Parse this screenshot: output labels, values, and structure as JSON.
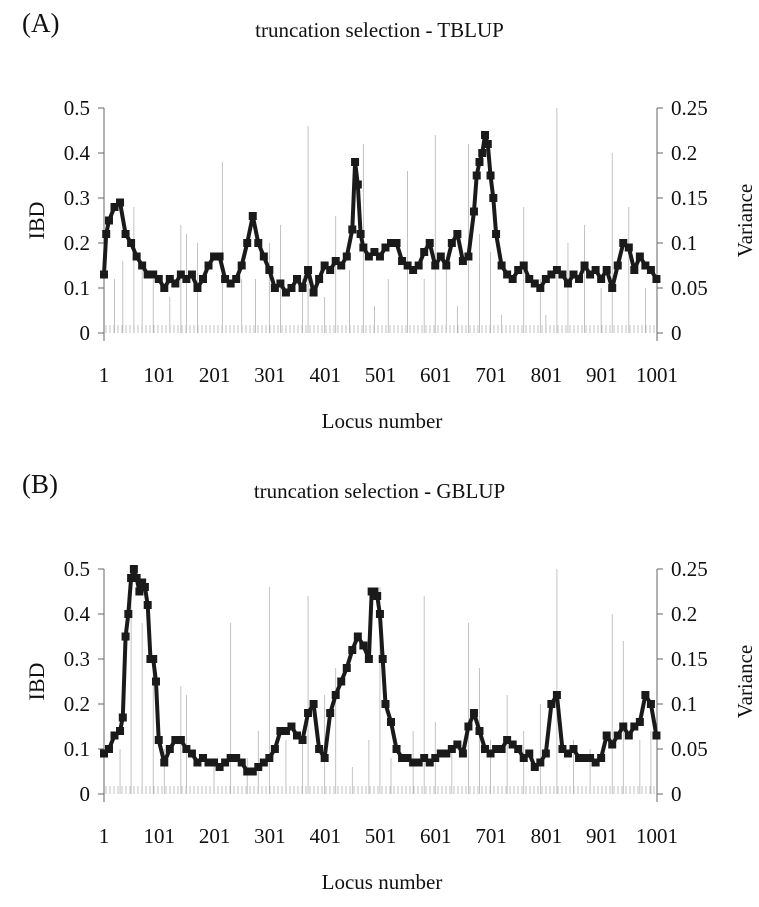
{
  "chart_data": [
    {
      "type": "line",
      "panel_label": "(A)",
      "title": "truncation selection - TBLUP",
      "xlabel": "Locus number",
      "ylabel": "IBD",
      "y2label": "Variance",
      "xlim": [
        1,
        1001
      ],
      "ylim": [
        0,
        0.5
      ],
      "y2lim": [
        0,
        0.25
      ],
      "x_ticks": [
        1,
        101,
        201,
        301,
        401,
        501,
        601,
        701,
        801,
        901,
        1001
      ],
      "y_ticks": [
        0,
        0.1,
        0.2,
        0.3,
        0.4,
        0.5
      ],
      "y2_ticks": [
        0,
        0.05,
        0.1,
        0.15,
        0.2,
        0.25
      ],
      "grid": false,
      "series": [
        {
          "axis": "left",
          "style": "thick line with square markers",
          "x": [
            1,
            5,
            10,
            20,
            30,
            40,
            50,
            60,
            70,
            80,
            90,
            100,
            110,
            120,
            130,
            140,
            150,
            160,
            170,
            180,
            190,
            200,
            210,
            220,
            230,
            240,
            250,
            260,
            270,
            280,
            290,
            300,
            310,
            320,
            330,
            340,
            350,
            360,
            370,
            380,
            390,
            400,
            410,
            420,
            430,
            440,
            450,
            455,
            460,
            465,
            470,
            480,
            490,
            500,
            510,
            520,
            530,
            540,
            550,
            560,
            570,
            580,
            590,
            600,
            610,
            620,
            630,
            640,
            650,
            660,
            670,
            675,
            680,
            685,
            690,
            695,
            700,
            705,
            710,
            720,
            730,
            740,
            750,
            760,
            770,
            780,
            790,
            800,
            810,
            820,
            830,
            840,
            850,
            860,
            870,
            880,
            890,
            900,
            910,
            920,
            930,
            940,
            950,
            960,
            970,
            980,
            990,
            1000
          ],
          "y": [
            0.13,
            0.22,
            0.25,
            0.28,
            0.29,
            0.22,
            0.2,
            0.17,
            0.15,
            0.13,
            0.13,
            0.12,
            0.1,
            0.12,
            0.11,
            0.13,
            0.12,
            0.13,
            0.1,
            0.12,
            0.15,
            0.17,
            0.17,
            0.12,
            0.11,
            0.12,
            0.15,
            0.2,
            0.26,
            0.2,
            0.17,
            0.14,
            0.1,
            0.11,
            0.09,
            0.1,
            0.12,
            0.1,
            0.14,
            0.09,
            0.12,
            0.15,
            0.14,
            0.16,
            0.15,
            0.17,
            0.23,
            0.38,
            0.33,
            0.22,
            0.19,
            0.17,
            0.18,
            0.17,
            0.19,
            0.2,
            0.2,
            0.16,
            0.15,
            0.14,
            0.15,
            0.18,
            0.2,
            0.15,
            0.17,
            0.15,
            0.2,
            0.22,
            0.16,
            0.17,
            0.27,
            0.35,
            0.38,
            0.4,
            0.44,
            0.42,
            0.35,
            0.3,
            0.22,
            0.15,
            0.13,
            0.12,
            0.14,
            0.15,
            0.12,
            0.11,
            0.1,
            0.12,
            0.13,
            0.14,
            0.13,
            0.11,
            0.13,
            0.12,
            0.15,
            0.13,
            0.14,
            0.12,
            0.14,
            0.1,
            0.15,
            0.2,
            0.19,
            0.14,
            0.17,
            0.15,
            0.14,
            0.12
          ]
        },
        {
          "axis": "right",
          "style": "thin grey vertical spikes",
          "x": [
            20,
            35,
            55,
            70,
            90,
            120,
            140,
            150,
            170,
            215,
            250,
            275,
            300,
            320,
            360,
            370,
            400,
            420,
            445,
            470,
            490,
            515,
            550,
            580,
            600,
            620,
            640,
            660,
            680,
            700,
            720,
            760,
            790,
            800,
            820,
            840,
            870,
            900,
            920,
            950,
            980
          ],
          "y": [
            0.06,
            0.08,
            0.14,
            0.07,
            0.06,
            0.04,
            0.12,
            0.11,
            0.1,
            0.19,
            0.06,
            0.06,
            0.1,
            0.12,
            0.06,
            0.23,
            0.04,
            0.13,
            0.07,
            0.21,
            0.03,
            0.06,
            0.18,
            0.06,
            0.22,
            0.08,
            0.03,
            0.21,
            0.11,
            0.09,
            0.02,
            0.14,
            0.06,
            0.02,
            0.25,
            0.1,
            0.12,
            0.05,
            0.2,
            0.14,
            0.05
          ]
        }
      ]
    },
    {
      "type": "line",
      "panel_label": "(B)",
      "title": "truncation selection - GBLUP",
      "xlabel": "Locus number",
      "ylabel": "IBD",
      "y2label": "Variance",
      "xlim": [
        1,
        1001
      ],
      "ylim": [
        0,
        0.5
      ],
      "y2lim": [
        0,
        0.25
      ],
      "x_ticks": [
        1,
        101,
        201,
        301,
        401,
        501,
        601,
        701,
        801,
        901,
        1001
      ],
      "y_ticks": [
        0,
        0.1,
        0.2,
        0.3,
        0.4,
        0.5
      ],
      "y2_ticks": [
        0,
        0.05,
        0.1,
        0.15,
        0.2,
        0.25
      ],
      "grid": false,
      "series": [
        {
          "axis": "left",
          "style": "thick line with square markers",
          "x": [
            1,
            10,
            20,
            30,
            35,
            40,
            45,
            50,
            55,
            60,
            65,
            70,
            75,
            80,
            85,
            90,
            95,
            100,
            110,
            120,
            130,
            140,
            150,
            160,
            170,
            180,
            190,
            200,
            210,
            220,
            230,
            240,
            250,
            260,
            270,
            280,
            290,
            300,
            310,
            320,
            330,
            340,
            350,
            360,
            370,
            380,
            390,
            400,
            410,
            420,
            430,
            440,
            450,
            460,
            470,
            480,
            485,
            490,
            495,
            500,
            505,
            510,
            520,
            530,
            540,
            550,
            560,
            570,
            580,
            590,
            600,
            610,
            620,
            630,
            640,
            650,
            660,
            670,
            680,
            690,
            700,
            710,
            720,
            730,
            740,
            750,
            760,
            770,
            780,
            790,
            800,
            810,
            820,
            830,
            840,
            850,
            860,
            870,
            880,
            890,
            900,
            910,
            920,
            930,
            940,
            950,
            960,
            970,
            980,
            990,
            1000
          ],
          "y": [
            0.09,
            0.1,
            0.13,
            0.14,
            0.17,
            0.35,
            0.4,
            0.48,
            0.5,
            0.48,
            0.45,
            0.47,
            0.46,
            0.42,
            0.3,
            0.3,
            0.25,
            0.12,
            0.07,
            0.1,
            0.12,
            0.12,
            0.1,
            0.09,
            0.07,
            0.08,
            0.07,
            0.07,
            0.06,
            0.07,
            0.08,
            0.08,
            0.07,
            0.05,
            0.05,
            0.06,
            0.07,
            0.08,
            0.1,
            0.14,
            0.14,
            0.15,
            0.13,
            0.12,
            0.18,
            0.2,
            0.1,
            0.08,
            0.18,
            0.22,
            0.25,
            0.28,
            0.32,
            0.35,
            0.33,
            0.3,
            0.45,
            0.45,
            0.44,
            0.4,
            0.3,
            0.2,
            0.16,
            0.1,
            0.08,
            0.08,
            0.07,
            0.07,
            0.08,
            0.07,
            0.08,
            0.09,
            0.09,
            0.1,
            0.11,
            0.09,
            0.15,
            0.18,
            0.14,
            0.1,
            0.09,
            0.1,
            0.1,
            0.12,
            0.11,
            0.1,
            0.08,
            0.09,
            0.06,
            0.07,
            0.09,
            0.2,
            0.22,
            0.1,
            0.09,
            0.1,
            0.08,
            0.08,
            0.08,
            0.07,
            0.08,
            0.13,
            0.11,
            0.13,
            0.15,
            0.13,
            0.15,
            0.16,
            0.22,
            0.2,
            0.13
          ]
        },
        {
          "axis": "right",
          "style": "thin grey vertical spikes",
          "x": [
            30,
            50,
            70,
            90,
            110,
            140,
            150,
            200,
            230,
            260,
            280,
            300,
            330,
            360,
            370,
            400,
            420,
            450,
            480,
            500,
            520,
            560,
            580,
            600,
            630,
            660,
            680,
            700,
            730,
            760,
            790,
            820,
            850,
            880,
            920,
            940,
            970,
            990
          ],
          "y": [
            0.05,
            0.22,
            0.19,
            0.15,
            0.05,
            0.12,
            0.11,
            0.04,
            0.19,
            0.04,
            0.07,
            0.23,
            0.06,
            0.07,
            0.22,
            0.11,
            0.14,
            0.03,
            0.06,
            0.23,
            0.04,
            0.07,
            0.22,
            0.08,
            0.05,
            0.19,
            0.14,
            0.06,
            0.11,
            0.07,
            0.1,
            0.25,
            0.06,
            0.05,
            0.2,
            0.17,
            0.06,
            0.07
          ]
        }
      ]
    }
  ]
}
